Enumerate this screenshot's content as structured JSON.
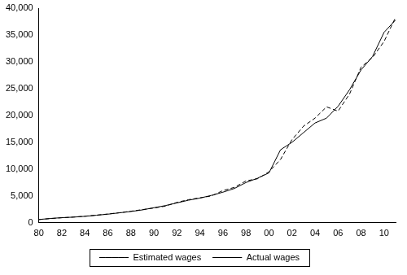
{
  "chart_data": {
    "type": "line",
    "categories": [
      "80",
      null,
      "82",
      null,
      "84",
      null,
      "86",
      null,
      "88",
      null,
      "90",
      null,
      "92",
      null,
      "94",
      null,
      "96",
      null,
      "98",
      null,
      "00",
      null,
      "02",
      null,
      "04",
      null,
      "06",
      null,
      "08",
      null,
      "10",
      null
    ],
    "series": [
      {
        "name": "Estimated wages",
        "color": "#000000",
        "line_style": "dashed",
        "values": [
          600,
          780,
          930,
          1060,
          1220,
          1420,
          1630,
          1870,
          2150,
          2450,
          2750,
          3100,
          3800,
          4300,
          4650,
          5000,
          6000,
          6600,
          7800,
          8200,
          9500,
          11800,
          15500,
          18000,
          19500,
          21600,
          20800,
          24000,
          29000,
          30800,
          33800,
          38300
        ]
      },
      {
        "name": "Actual wages",
        "color": "#000000",
        "line_style": "solid",
        "values": [
          600,
          800,
          950,
          1050,
          1200,
          1400,
          1600,
          1850,
          2100,
          2400,
          2800,
          3200,
          3700,
          4200,
          4600,
          5100,
          5700,
          6400,
          7500,
          8300,
          9300,
          13600,
          15000,
          16800,
          18600,
          19500,
          21700,
          24800,
          28500,
          31000,
          35500,
          37800
        ]
      }
    ],
    "ylim": [
      0,
      40000
    ],
    "yticks": [
      0,
      {
        "value": 5000,
        "label": "5,000"
      },
      {
        "value": 10000,
        "label": "10,000"
      },
      {
        "value": 15000,
        "label": "15,000"
      },
      {
        "value": 20000,
        "label": "20,000"
      },
      {
        "value": 25000,
        "label": "25,000"
      },
      {
        "value": 30000,
        "label": "30,000"
      },
      {
        "value": 35000,
        "label": "35,000"
      },
      {
        "value": 40000,
        "label": "40,000"
      }
    ],
    "grid": false,
    "legend": "bottom"
  }
}
